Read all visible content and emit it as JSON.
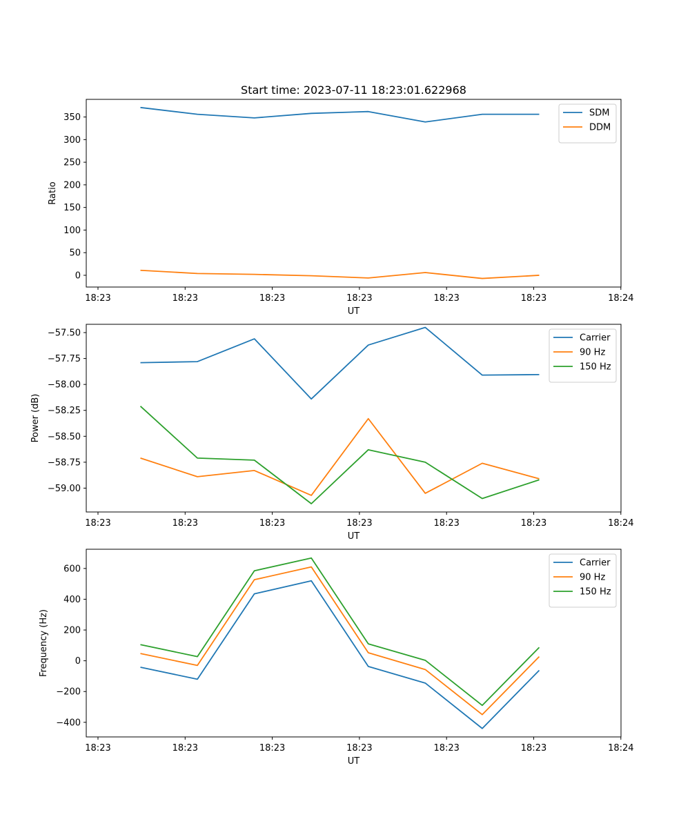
{
  "figure_title": "Start time: 2023-07-11 18:23:01.622968",
  "chart_data": [
    {
      "type": "line",
      "xlabel": "UT",
      "ylabel": "Ratio",
      "x_tick_labels": [
        "18:23",
        "18:23",
        "18:23",
        "18:23",
        "18:23",
        "18:23",
        "18:24"
      ],
      "y_ticks": [
        0,
        50,
        100,
        150,
        200,
        250,
        300,
        350
      ],
      "ylim": [
        -26,
        389
      ],
      "legend_location": "top-right",
      "series": [
        {
          "name": "SDM",
          "color": "#1f77b4",
          "values": [
            371,
            356,
            348,
            358,
            362,
            339,
            356,
            356
          ]
        },
        {
          "name": "DDM",
          "color": "#ff7f0e",
          "values": [
            11,
            4,
            2,
            -1,
            -6,
            6,
            -7,
            0
          ]
        }
      ]
    },
    {
      "type": "line",
      "xlabel": "UT",
      "ylabel": "Power (dB)",
      "x_tick_labels": [
        "18:23",
        "18:23",
        "18:23",
        "18:23",
        "18:23",
        "18:23",
        "18:24"
      ],
      "y_ticks": [
        -59.0,
        -58.75,
        -58.5,
        -58.25,
        -58.0,
        -57.75,
        -57.5
      ],
      "y_tick_labels": [
        "−59.00",
        "−58.75",
        "−58.50",
        "−58.25",
        "−58.00",
        "−57.75",
        "−57.50"
      ],
      "ylim": [
        -59.23,
        -57.42
      ],
      "legend_location": "top-right",
      "series": [
        {
          "name": "Carrier",
          "color": "#1f77b4",
          "values": [
            -57.79,
            -57.78,
            -57.56,
            -58.14,
            -57.62,
            -57.45,
            -57.91,
            -57.905
          ]
        },
        {
          "name": "90 Hz",
          "color": "#ff7f0e",
          "values": [
            -58.71,
            -58.89,
            -58.83,
            -59.07,
            -58.33,
            -59.05,
            -58.76,
            -58.91
          ]
        },
        {
          "name": "150 Hz",
          "color": "#2ca02c",
          "values": [
            -58.21,
            -58.71,
            -58.73,
            -59.15,
            -58.63,
            -58.75,
            -59.1,
            -58.92
          ]
        }
      ]
    },
    {
      "type": "line",
      "xlabel": "UT",
      "ylabel": "Frequency (Hz)",
      "x_tick_labels": [
        "18:23",
        "18:23",
        "18:23",
        "18:23",
        "18:23",
        "18:23",
        "18:24"
      ],
      "y_ticks": [
        -400,
        -200,
        0,
        200,
        400,
        600
      ],
      "y_tick_labels": [
        "−400",
        "−200",
        "0",
        "200",
        "400",
        "600"
      ],
      "ylim": [
        -495,
        725
      ],
      "legend_location": "top-right",
      "series": [
        {
          "name": "Carrier",
          "color": "#1f77b4",
          "values": [
            -42,
            -120,
            435,
            520,
            -37,
            -145,
            -440,
            -62
          ]
        },
        {
          "name": "90 Hz",
          "color": "#ff7f0e",
          "values": [
            47,
            -30,
            527,
            610,
            52,
            -57,
            -350,
            27
          ]
        },
        {
          "name": "150 Hz",
          "color": "#2ca02c",
          "values": [
            105,
            27,
            585,
            668,
            110,
            3,
            -290,
            87
          ]
        }
      ]
    }
  ]
}
